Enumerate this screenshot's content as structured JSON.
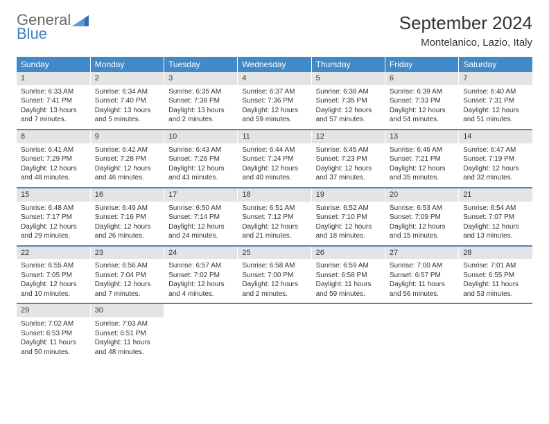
{
  "logo": {
    "part1": "General",
    "part2": "Blue"
  },
  "title": "September 2024",
  "location": "Montelanico, Lazio, Italy",
  "colors": {
    "header_bg": "#4189c7",
    "header_text": "#ffffff",
    "daynum_bg": "#e4e4e4",
    "row_border": "#4189c7",
    "text": "#333333",
    "logo_gray": "#6b6b6b",
    "logo_blue": "#3b7fbf"
  },
  "weekdays": [
    "Sunday",
    "Monday",
    "Tuesday",
    "Wednesday",
    "Thursday",
    "Friday",
    "Saturday"
  ],
  "weeks": [
    [
      {
        "num": "1",
        "sunrise": "Sunrise: 6:33 AM",
        "sunset": "Sunset: 7:41 PM",
        "daylight": "Daylight: 13 hours and 7 minutes."
      },
      {
        "num": "2",
        "sunrise": "Sunrise: 6:34 AM",
        "sunset": "Sunset: 7:40 PM",
        "daylight": "Daylight: 13 hours and 5 minutes."
      },
      {
        "num": "3",
        "sunrise": "Sunrise: 6:35 AM",
        "sunset": "Sunset: 7:38 PM",
        "daylight": "Daylight: 13 hours and 2 minutes."
      },
      {
        "num": "4",
        "sunrise": "Sunrise: 6:37 AM",
        "sunset": "Sunset: 7:36 PM",
        "daylight": "Daylight: 12 hours and 59 minutes."
      },
      {
        "num": "5",
        "sunrise": "Sunrise: 6:38 AM",
        "sunset": "Sunset: 7:35 PM",
        "daylight": "Daylight: 12 hours and 57 minutes."
      },
      {
        "num": "6",
        "sunrise": "Sunrise: 6:39 AM",
        "sunset": "Sunset: 7:33 PM",
        "daylight": "Daylight: 12 hours and 54 minutes."
      },
      {
        "num": "7",
        "sunrise": "Sunrise: 6:40 AM",
        "sunset": "Sunset: 7:31 PM",
        "daylight": "Daylight: 12 hours and 51 minutes."
      }
    ],
    [
      {
        "num": "8",
        "sunrise": "Sunrise: 6:41 AM",
        "sunset": "Sunset: 7:29 PM",
        "daylight": "Daylight: 12 hours and 48 minutes."
      },
      {
        "num": "9",
        "sunrise": "Sunrise: 6:42 AM",
        "sunset": "Sunset: 7:28 PM",
        "daylight": "Daylight: 12 hours and 46 minutes."
      },
      {
        "num": "10",
        "sunrise": "Sunrise: 6:43 AM",
        "sunset": "Sunset: 7:26 PM",
        "daylight": "Daylight: 12 hours and 43 minutes."
      },
      {
        "num": "11",
        "sunrise": "Sunrise: 6:44 AM",
        "sunset": "Sunset: 7:24 PM",
        "daylight": "Daylight: 12 hours and 40 minutes."
      },
      {
        "num": "12",
        "sunrise": "Sunrise: 6:45 AM",
        "sunset": "Sunset: 7:23 PM",
        "daylight": "Daylight: 12 hours and 37 minutes."
      },
      {
        "num": "13",
        "sunrise": "Sunrise: 6:46 AM",
        "sunset": "Sunset: 7:21 PM",
        "daylight": "Daylight: 12 hours and 35 minutes."
      },
      {
        "num": "14",
        "sunrise": "Sunrise: 6:47 AM",
        "sunset": "Sunset: 7:19 PM",
        "daylight": "Daylight: 12 hours and 32 minutes."
      }
    ],
    [
      {
        "num": "15",
        "sunrise": "Sunrise: 6:48 AM",
        "sunset": "Sunset: 7:17 PM",
        "daylight": "Daylight: 12 hours and 29 minutes."
      },
      {
        "num": "16",
        "sunrise": "Sunrise: 6:49 AM",
        "sunset": "Sunset: 7:16 PM",
        "daylight": "Daylight: 12 hours and 26 minutes."
      },
      {
        "num": "17",
        "sunrise": "Sunrise: 6:50 AM",
        "sunset": "Sunset: 7:14 PM",
        "daylight": "Daylight: 12 hours and 24 minutes."
      },
      {
        "num": "18",
        "sunrise": "Sunrise: 6:51 AM",
        "sunset": "Sunset: 7:12 PM",
        "daylight": "Daylight: 12 hours and 21 minutes."
      },
      {
        "num": "19",
        "sunrise": "Sunrise: 6:52 AM",
        "sunset": "Sunset: 7:10 PM",
        "daylight": "Daylight: 12 hours and 18 minutes."
      },
      {
        "num": "20",
        "sunrise": "Sunrise: 6:53 AM",
        "sunset": "Sunset: 7:09 PM",
        "daylight": "Daylight: 12 hours and 15 minutes."
      },
      {
        "num": "21",
        "sunrise": "Sunrise: 6:54 AM",
        "sunset": "Sunset: 7:07 PM",
        "daylight": "Daylight: 12 hours and 13 minutes."
      }
    ],
    [
      {
        "num": "22",
        "sunrise": "Sunrise: 6:55 AM",
        "sunset": "Sunset: 7:05 PM",
        "daylight": "Daylight: 12 hours and 10 minutes."
      },
      {
        "num": "23",
        "sunrise": "Sunrise: 6:56 AM",
        "sunset": "Sunset: 7:04 PM",
        "daylight": "Daylight: 12 hours and 7 minutes."
      },
      {
        "num": "24",
        "sunrise": "Sunrise: 6:57 AM",
        "sunset": "Sunset: 7:02 PM",
        "daylight": "Daylight: 12 hours and 4 minutes."
      },
      {
        "num": "25",
        "sunrise": "Sunrise: 6:58 AM",
        "sunset": "Sunset: 7:00 PM",
        "daylight": "Daylight: 12 hours and 2 minutes."
      },
      {
        "num": "26",
        "sunrise": "Sunrise: 6:59 AM",
        "sunset": "Sunset: 6:58 PM",
        "daylight": "Daylight: 11 hours and 59 minutes."
      },
      {
        "num": "27",
        "sunrise": "Sunrise: 7:00 AM",
        "sunset": "Sunset: 6:57 PM",
        "daylight": "Daylight: 11 hours and 56 minutes."
      },
      {
        "num": "28",
        "sunrise": "Sunrise: 7:01 AM",
        "sunset": "Sunset: 6:55 PM",
        "daylight": "Daylight: 11 hours and 53 minutes."
      }
    ],
    [
      {
        "num": "29",
        "sunrise": "Sunrise: 7:02 AM",
        "sunset": "Sunset: 6:53 PM",
        "daylight": "Daylight: 11 hours and 50 minutes."
      },
      {
        "num": "30",
        "sunrise": "Sunrise: 7:03 AM",
        "sunset": "Sunset: 6:51 PM",
        "daylight": "Daylight: 11 hours and 48 minutes."
      },
      null,
      null,
      null,
      null,
      null
    ]
  ]
}
